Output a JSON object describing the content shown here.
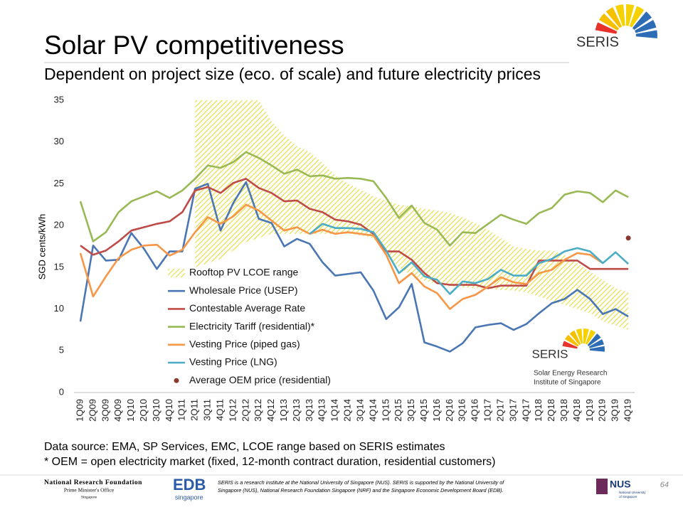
{
  "slide": {
    "title": "Solar PV competitiveness",
    "subtitle": "Dependent on project size (eco. of scale) and future electricity prices",
    "logo": "SERIS",
    "chart_logo": {
      "name": "SERIS",
      "line1": "Solar Energy Research",
      "line2": "Institute of Singapore"
    },
    "notes": [
      "Data source: EMA, SP Services, EMC, LCOE range based on SERIS estimates",
      "* OEM = open electricity market (fixed, 12-month contract duration, residential customers)"
    ],
    "footer": {
      "nrf": "National Research Foundation",
      "pmo": "Prime Minister's Office",
      "sg": "Singapore",
      "edb": "EDB",
      "edb_sub": "singapore",
      "description": [
        "SERIS is a research institute at the National University of Singapore (NUS). SERIS is supported by the National University of",
        "Singapore (NUS), National Research Foundation Singapore (NRF) and the Singapore Economic Development Board (EDB)."
      ],
      "nus": "NUS",
      "nus_sub": [
        "National University",
        "of Singapore"
      ],
      "page": "64"
    }
  },
  "chart_data": {
    "type": "line",
    "y_label": "SGD cents/kWh",
    "categories": [
      "1Q09",
      "2Q09",
      "3Q09",
      "4Q09",
      "1Q10",
      "2Q10",
      "3Q10",
      "4Q10",
      "1Q11",
      "2Q11",
      "3Q11",
      "4Q11",
      "1Q12",
      "2Q12",
      "3Q12",
      "4Q12",
      "1Q13",
      "2Q13",
      "3Q13",
      "4Q13",
      "1Q14",
      "2Q14",
      "3Q14",
      "4Q14",
      "1Q15",
      "2Q15",
      "3Q15",
      "4Q15",
      "1Q16",
      "2Q16",
      "3Q16",
      "4Q16",
      "1Q17",
      "2Q17",
      "3Q17",
      "4Q17",
      "1Q18",
      "2Q18",
      "3Q18",
      "4Q18",
      "1Q19",
      "2Q19",
      "3Q19",
      "4Q19"
    ],
    "ylim": [
      0,
      35
    ],
    "yticks": [
      0,
      5,
      10,
      15,
      20,
      25,
      30,
      35
    ],
    "grid": false,
    "band": {
      "name": "Rooftop PV LCOE range",
      "color": "#e8e05a",
      "high": [
        null,
        null,
        null,
        null,
        null,
        null,
        null,
        null,
        null,
        35,
        35,
        35,
        35,
        35,
        35,
        32.5,
        30.8,
        29.5,
        28.8,
        27.5,
        26,
        25,
        24.3,
        23.5,
        23,
        22.5,
        22.3,
        22,
        21.8,
        21.5,
        21,
        20.3,
        19.5,
        18.5,
        17.5,
        17.2,
        17,
        17,
        16.5,
        15.5,
        14.5,
        13.5,
        12.5,
        12
      ],
      "low": [
        null,
        null,
        null,
        null,
        null,
        null,
        null,
        null,
        null,
        15,
        15.5,
        16,
        17,
        18,
        18.5,
        19,
        19,
        19,
        19,
        19,
        19,
        19,
        18.8,
        18.5,
        16.5,
        15,
        14,
        13.4,
        13,
        12.7,
        12.6,
        12.5,
        12.4,
        12.3,
        12.2,
        12,
        11.5,
        11,
        10.5,
        10,
        9.5,
        8.5,
        8,
        7.5
      ]
    },
    "series": [
      {
        "name": "Wholesale Price (USEP)",
        "color": "#4a76b4",
        "values": [
          8.5,
          17.6,
          15.8,
          15.9,
          19.1,
          17.2,
          14.8,
          16.9,
          16.9,
          24.4,
          25.0,
          19.4,
          22.7,
          25.2,
          20.8,
          20.3,
          17.5,
          18.4,
          17.8,
          15.6,
          14.0,
          14.2,
          14.4,
          12.2,
          8.8,
          10.2,
          13.0,
          6.0,
          5.5,
          4.9,
          5.9,
          7.8,
          8.1,
          8.3,
          7.5,
          8.2,
          9.5,
          10.7,
          11.2,
          12.3,
          11.2,
          9.4,
          10.0,
          9.1
        ]
      },
      {
        "name": "Contestable Average Rate",
        "color": "#be4b48",
        "values": [
          17.6,
          16.5,
          17.0,
          18.1,
          19.4,
          19.8,
          20.2,
          20.5,
          21.6,
          24.2,
          24.6,
          23.9,
          25.1,
          25.6,
          24.5,
          23.9,
          22.9,
          23.0,
          22.0,
          21.6,
          20.7,
          20.5,
          20.1,
          19.0,
          16.9,
          16.9,
          15.9,
          14.3,
          13.1,
          12.9,
          12.9,
          12.9,
          12.5,
          12.8,
          12.8,
          12.8,
          15.8,
          15.8,
          15.8,
          15.8,
          14.8,
          14.8,
          14.8,
          14.8
        ]
      },
      {
        "name": "Electricity Tariff (residential)*",
        "color": "#98b954",
        "values": [
          22.9,
          18.1,
          19.2,
          21.6,
          22.9,
          23.5,
          24.1,
          23.3,
          24.2,
          25.6,
          27.2,
          26.9,
          27.6,
          28.8,
          28.1,
          27.2,
          26.2,
          26.7,
          25.9,
          26.0,
          25.6,
          25.7,
          25.6,
          25.3,
          23.3,
          20.9,
          22.4,
          20.3,
          19.5,
          17.6,
          19.2,
          19.1,
          20.2,
          21.3,
          20.7,
          20.2,
          21.5,
          22.1,
          23.7,
          24.1,
          23.9,
          22.8,
          24.2,
          23.4
        ]
      },
      {
        "name": "Vesting Price (piped gas)",
        "color": "#f79646",
        "values": [
          16.7,
          11.5,
          13.9,
          16.1,
          17.1,
          17.6,
          17.7,
          16.4,
          17.1,
          19.2,
          21.0,
          20.2,
          21.1,
          22.5,
          21.8,
          20.6,
          19.4,
          19.8,
          19.0,
          19.5,
          19.0,
          19.2,
          19.0,
          18.8,
          16.5,
          13.1,
          14.3,
          12.7,
          11.9,
          10.0,
          11.2,
          11.7,
          12.7,
          13.8,
          13.2,
          13.0,
          14.3,
          14.7,
          15.9,
          16.7,
          16.5,
          15.5,
          null,
          null
        ]
      },
      {
        "name": "Vesting Price (LNG)",
        "color": "#4bacc6",
        "values": [
          null,
          null,
          null,
          null,
          null,
          null,
          null,
          null,
          null,
          null,
          null,
          null,
          null,
          null,
          null,
          null,
          null,
          null,
          19.0,
          20.2,
          19.7,
          19.7,
          19.6,
          19.2,
          17.0,
          14.3,
          15.6,
          13.9,
          13.5,
          11.8,
          13.3,
          13.1,
          13.6,
          14.7,
          14.0,
          14.0,
          15.5,
          16.0,
          16.9,
          17.3,
          16.9,
          15.5,
          16.8,
          15.4
        ]
      },
      {
        "name": "Average OEM price (residential)",
        "color": "#8b3a32",
        "marker": "dot",
        "values": [
          null,
          null,
          null,
          null,
          null,
          null,
          null,
          null,
          null,
          null,
          null,
          null,
          null,
          null,
          null,
          null,
          null,
          null,
          null,
          null,
          null,
          null,
          null,
          null,
          null,
          null,
          null,
          null,
          null,
          null,
          null,
          null,
          null,
          null,
          null,
          null,
          null,
          null,
          null,
          null,
          null,
          null,
          null,
          18.5
        ]
      }
    ]
  }
}
